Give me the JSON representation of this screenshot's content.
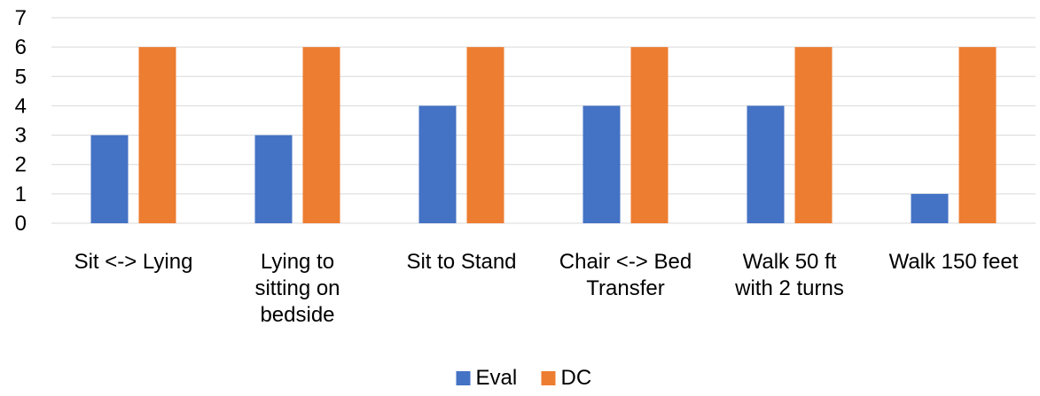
{
  "chart_data": {
    "type": "bar",
    "title": "",
    "xlabel": "",
    "ylabel": "",
    "categories": [
      [
        "Sit <-> Lying"
      ],
      [
        "Lying to",
        "sitting on",
        "bedside"
      ],
      [
        "Sit to Stand"
      ],
      [
        "Chair <-> Bed",
        "Transfer"
      ],
      [
        "Walk 50 ft",
        "with 2 turns"
      ],
      [
        "Walk 150 feet"
      ]
    ],
    "series": [
      {
        "name": "Eval",
        "color": "#4472C4",
        "values": [
          3,
          3,
          4,
          4,
          4,
          1
        ]
      },
      {
        "name": "DC",
        "color": "#ED7D31",
        "values": [
          6,
          6,
          6,
          6,
          6,
          6
        ]
      }
    ],
    "ylim": [
      0,
      7
    ],
    "yticks": [
      0,
      1,
      2,
      3,
      4,
      5,
      6,
      7
    ],
    "grid": true,
    "gridColor": "#D9D9D9",
    "legend": "bottom"
  }
}
